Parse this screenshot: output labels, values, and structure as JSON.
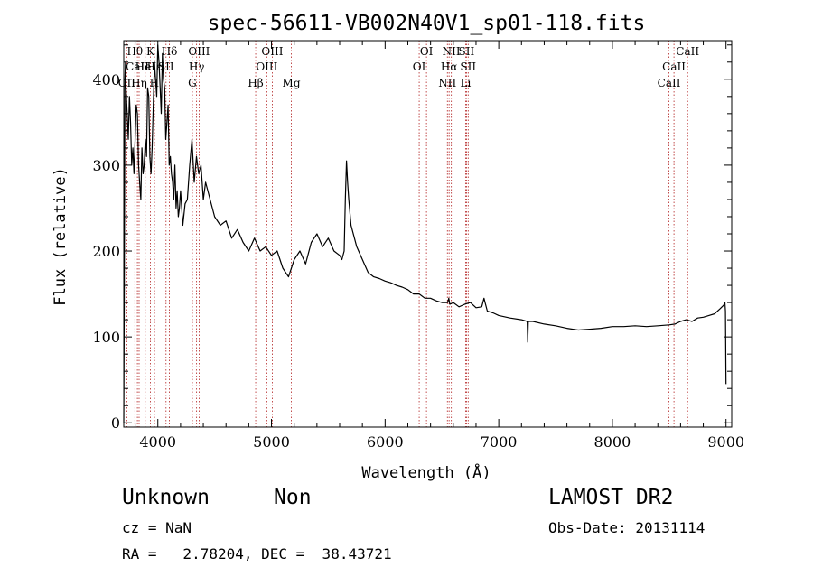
{
  "chart_data": {
    "type": "line",
    "title": "spec-56611-VB002N40V1_sp01-118.fits",
    "xlabel": "Wavelength (Å)",
    "ylabel": "Flux (relative)",
    "xlim": [
      3700,
      9050
    ],
    "ylim": [
      -5,
      445
    ],
    "x_ticks": [
      4000,
      5000,
      6000,
      7000,
      8000,
      9000
    ],
    "y_ticks": [
      0,
      100,
      200,
      300,
      400
    ],
    "grid": false,
    "line_color": "#000000",
    "marker_color": "#b22222",
    "series": [
      {
        "x": [
          3700,
          3705,
          3710,
          3715,
          3720,
          3730,
          3740,
          3750,
          3760,
          3770,
          3780,
          3790,
          3800,
          3810,
          3820,
          3830,
          3840,
          3850,
          3860,
          3870,
          3880,
          3890,
          3900,
          3910,
          3920,
          3930,
          3940,
          3950,
          3960,
          3970,
          3980,
          3990,
          4000,
          4010,
          4020,
          4030,
          4040,
          4050,
          4060,
          4070,
          4080,
          4090,
          4100,
          4110,
          4120,
          4130,
          4140,
          4150,
          4160,
          4170,
          4180,
          4190,
          4200,
          4220,
          4240,
          4260,
          4280,
          4300,
          4320,
          4340,
          4360,
          4380,
          4400,
          4420,
          4440,
          4460,
          4480,
          4500,
          4550,
          4600,
          4650,
          4700,
          4750,
          4800,
          4850,
          4900,
          4950,
          5000,
          5050,
          5100,
          5150,
          5200,
          5250,
          5300,
          5350,
          5400,
          5450,
          5500,
          5550,
          5600,
          5620,
          5640,
          5650,
          5660,
          5670,
          5680,
          5700,
          5750,
          5800,
          5850,
          5900,
          5950,
          6000,
          6050,
          6100,
          6150,
          6200,
          6250,
          6300,
          6350,
          6400,
          6450,
          6500,
          6550,
          6560,
          6570,
          6600,
          6650,
          6700,
          6750,
          6800,
          6850,
          6870,
          6880,
          6900,
          6950,
          7000,
          7100,
          7200,
          7250,
          7255,
          7260,
          7300,
          7400,
          7500,
          7600,
          7700,
          7800,
          7900,
          8000,
          8100,
          8200,
          8300,
          8400,
          8500,
          8550,
          8600,
          8650,
          8700,
          8750,
          8800,
          8850,
          8900,
          8950,
          8980,
          8990,
          8995,
          9000
        ],
        "y": [
          0,
          160,
          400,
          420,
          390,
          360,
          330,
          380,
          350,
          300,
          320,
          290,
          330,
          370,
          360,
          300,
          280,
          260,
          320,
          290,
          300,
          330,
          310,
          390,
          380,
          310,
          290,
          320,
          370,
          420,
          400,
          380,
          440,
          420,
          390,
          360,
          430,
          400,
          390,
          330,
          350,
          370,
          300,
          310,
          290,
          280,
          260,
          300,
          250,
          270,
          240,
          250,
          270,
          230,
          255,
          260,
          300,
          330,
          280,
          310,
          290,
          300,
          260,
          280,
          270,
          260,
          250,
          240,
          230,
          235,
          215,
          225,
          210,
          200,
          215,
          200,
          205,
          195,
          200,
          180,
          170,
          190,
          200,
          185,
          210,
          220,
          205,
          215,
          200,
          195,
          190,
          200,
          260,
          305,
          280,
          260,
          230,
          205,
          190,
          175,
          170,
          168,
          165,
          163,
          160,
          158,
          155,
          150,
          150,
          145,
          145,
          142,
          140,
          140,
          145,
          138,
          140,
          135,
          138,
          140,
          134,
          135,
          145,
          140,
          130,
          128,
          125,
          122,
          120,
          118,
          94,
          118,
          118,
          115,
          113,
          110,
          108,
          109,
          110,
          112,
          112,
          113,
          112,
          113,
          114,
          115,
          118,
          120,
          118,
          122,
          123,
          125,
          127,
          133,
          137,
          140,
          130,
          45
        ]
      }
    ],
    "lines": [
      {
        "label": "Hθ",
        "x": 3798,
        "row": 0
      },
      {
        "label": "CaII",
        "x": 3820,
        "row": 1
      },
      {
        "label": "OII",
        "x": 3727,
        "row": 2
      },
      {
        "label": "Hη",
        "x": 3835,
        "row": 2
      },
      {
        "label": "K",
        "x": 3934,
        "row": 0
      },
      {
        "label": "HeI",
        "x": 3889,
        "row": 1
      },
      {
        "label": "H",
        "x": 3969,
        "row": 2
      },
      {
        "label": "Hε",
        "x": 3970,
        "row": 1
      },
      {
        "label": "Hδ",
        "x": 4102,
        "row": 0
      },
      {
        "label": "SII",
        "x": 4072,
        "row": 1
      },
      {
        "label": "OIII",
        "x": 4363,
        "row": 0
      },
      {
        "label": "Hγ",
        "x": 4341,
        "row": 1
      },
      {
        "label": "G",
        "x": 4304,
        "row": 2
      },
      {
        "label": "Hβ",
        "x": 4861,
        "row": 2
      },
      {
        "label": "OIII",
        "x": 5007,
        "row": 0
      },
      {
        "label": "OIII",
        "x": 4959,
        "row": 1
      },
      {
        "label": "Mg",
        "x": 5175,
        "row": 2
      },
      {
        "label": "OI",
        "x": 6364,
        "row": 0
      },
      {
        "label": "OI",
        "x": 6300,
        "row": 1
      },
      {
        "label": "NII",
        "x": 6583,
        "row": 0
      },
      {
        "label": "SII",
        "x": 6716,
        "row": 0
      },
      {
        "label": "Hα",
        "x": 6563,
        "row": 1
      },
      {
        "label": "SII",
        "x": 6731,
        "row": 1
      },
      {
        "label": "NII",
        "x": 6548,
        "row": 2
      },
      {
        "label": "Li",
        "x": 6708,
        "row": 2
      },
      {
        "label": "CaII",
        "x": 8662,
        "row": 0
      },
      {
        "label": "CaII",
        "x": 8542,
        "row": 1
      },
      {
        "label": "CaII",
        "x": 8498,
        "row": 2
      }
    ]
  },
  "info": {
    "object_class": "Unknown",
    "subclass": "Non",
    "survey": "LAMOST DR2",
    "redshift": "cz = NaN",
    "obs_date": "Obs-Date: 20131114",
    "coords": "RA =   2.78204, DEC =  38.43721"
  }
}
